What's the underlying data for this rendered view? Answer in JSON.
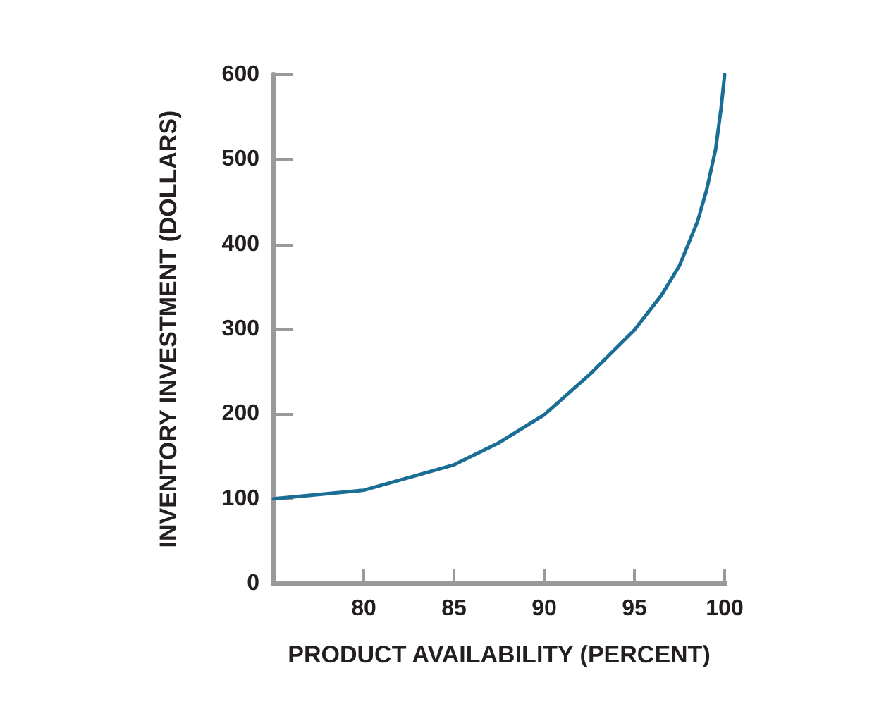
{
  "chart_data": {
    "type": "line",
    "xlabel": "PRODUCT AVAILABILITY (PERCENT)",
    "ylabel": "INVENTORY INVESTMENT (DOLLARS)",
    "x": [
      75,
      80,
      85,
      87.5,
      90,
      92.5,
      95,
      96.5,
      97.5,
      98.5,
      99,
      99.5,
      99.8,
      100
    ],
    "series": [
      {
        "color": "#1a6e96",
        "values": [
          100,
          110,
          140,
          166,
          199,
          246,
          299,
          340,
          375,
          427,
          464,
          512,
          560,
          600
        ]
      }
    ],
    "xlim": [
      75,
      100
    ],
    "xticks": [
      80,
      85,
      90,
      95,
      100
    ],
    "ylim": [
      0,
      600
    ],
    "yticks": [
      0,
      100,
      200,
      300,
      400,
      500,
      600
    ],
    "grid": false,
    "marker": "none",
    "line_style": "solid"
  }
}
